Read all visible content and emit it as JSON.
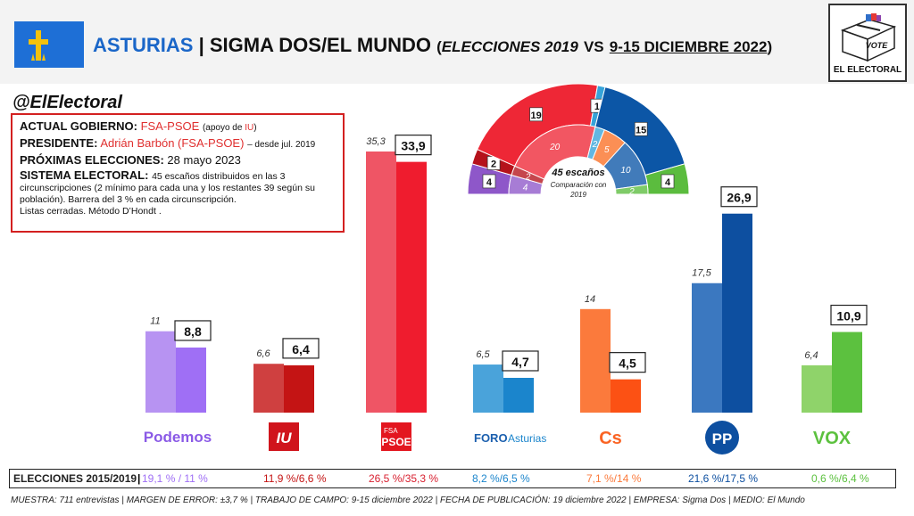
{
  "header": {
    "region": "ASTURIAS",
    "separator": "|",
    "title": "SIGMA DOS/EL MUNDO",
    "paren_open": "(",
    "elections": "ELECCIONES 2019",
    "vs": "VS",
    "dates": "9-15 DICIEMBRE 2022",
    "paren_close": ")"
  },
  "logo": {
    "vote_text": "VOTE",
    "brand": "EL ELECTORAL"
  },
  "handle": "@ElElectoral",
  "infobox": {
    "gov_label": "ACTUAL GOBIERNO:",
    "gov_value": "FSA-PSOE",
    "gov_note_pre": "(apoyo de ",
    "gov_note_party": "IU",
    "gov_note_post": ")",
    "pres_label": "PRESIDENTE:",
    "pres_value": "Adrián Barbón (FSA-PSOE)",
    "pres_note": "– desde jul. 2019",
    "next_label": "PRÓXIMAS ELECCIONES:",
    "next_value": "28 mayo 2023",
    "system_label": "SISTEMA ELECTORAL:",
    "system_line1": "45 escaños distribuidos en las 3",
    "system_line2": "circunscripciones (2 mínimo para cada una y los restantes 39 según su",
    "system_line3": "población). Barrera del 3 % en cada circunscripción.",
    "system_line4": "Listas cerradas. Método D’Hondt ."
  },
  "parliament": {
    "title": "45 escaños",
    "subtitle_1": "Comparación con",
    "subtitle_2": "2019"
  },
  "party_logos": {
    "podemos": "Podemos",
    "iu": "IU",
    "psoe_top": "FSA",
    "psoe_bottom": "PSOE",
    "foro_a": "FORO",
    "foro_b": "Asturias",
    "cs": "Cs",
    "pp": "PP",
    "vox": "VOX"
  },
  "chart_data": [
    {
      "type": "bar",
      "categories": [
        "Podemos",
        "IU",
        "FSA-PSOE",
        "Foro Asturias",
        "Cs",
        "PP",
        "VOX"
      ],
      "series": [
        {
          "name": "ELECCIONES 2019",
          "values": [
            11,
            6.6,
            35.3,
            6.5,
            14,
            17.5,
            6.4
          ]
        },
        {
          "name": "SIGMA DOS/EL MUNDO",
          "values": [
            8.8,
            6.4,
            33.9,
            4.7,
            4.5,
            26.9,
            10.9
          ]
        }
      ],
      "value_labels_2019": [
        "11",
        "6,6",
        "35,3",
        "6,5",
        "14",
        "17,5",
        "6,4"
      ],
      "value_labels_poll": [
        "8,8",
        "6,4",
        "33,9",
        "4,7",
        "4,5",
        "26,9",
        "10,9"
      ],
      "colors_2019": [
        "#b793f2",
        "#cf4040",
        "#ef5565",
        "#4aa3da",
        "#fb7a3c",
        "#3b78c0",
        "#8fd36a"
      ],
      "colors_poll": [
        "#9f6ff5",
        "#c41414",
        "#ef1c2e",
        "#1b85cc",
        "#fc5114",
        "#0d4fa0",
        "#5cc13f"
      ],
      "ylim": [
        0,
        40
      ]
    },
    {
      "type": "pie",
      "title": "45 escaños",
      "subtitle": "Comparación con 2019",
      "categories": [
        "Podemos",
        "IU",
        "FSA-PSOE",
        "Foro Asturias",
        "Cs",
        "PP",
        "VOX"
      ],
      "series": [
        {
          "name": "SIGMA DOS/EL MUNDO",
          "values": [
            4,
            2,
            19,
            1,
            0,
            15,
            4
          ]
        },
        {
          "name": "2019",
          "values": [
            4,
            2,
            20,
            2,
            5,
            10,
            2
          ]
        }
      ],
      "colors": [
        "#8e57c9",
        "#b5121b",
        "#ee2736",
        "#36a3d9",
        "#fa7025",
        "#0c56a6",
        "#5bbc3e"
      ]
    }
  ],
  "bottom_table": {
    "label": "ELECCIONES 2015/2019",
    "sep": "|",
    "values": [
      "19,1 % / 11 %",
      "11,9 %/6,6 %",
      "26,5 %/35,3 %",
      "8,2 %/6,5 %",
      "7,1 %/14 %",
      "21,6 %/17,5 %",
      "0,6 %/6,4 %"
    ],
    "colors": [
      "#9f6ff5",
      "#c41414",
      "#d82030",
      "#1b85cc",
      "#fb7a3c",
      "#0d4fa0",
      "#5cc13f"
    ]
  },
  "footer": "MUESTRA: 711 entrevistas | MARGEN DE ERROR: ±3,7 % | TRABAJO DE CAMPO: 9-15 diciembre 2022 | FECHA DE PUBLICACIÓN: 19 diciembre 2022 | EMPRESA: Sigma Dos | MEDIO: El Mundo"
}
